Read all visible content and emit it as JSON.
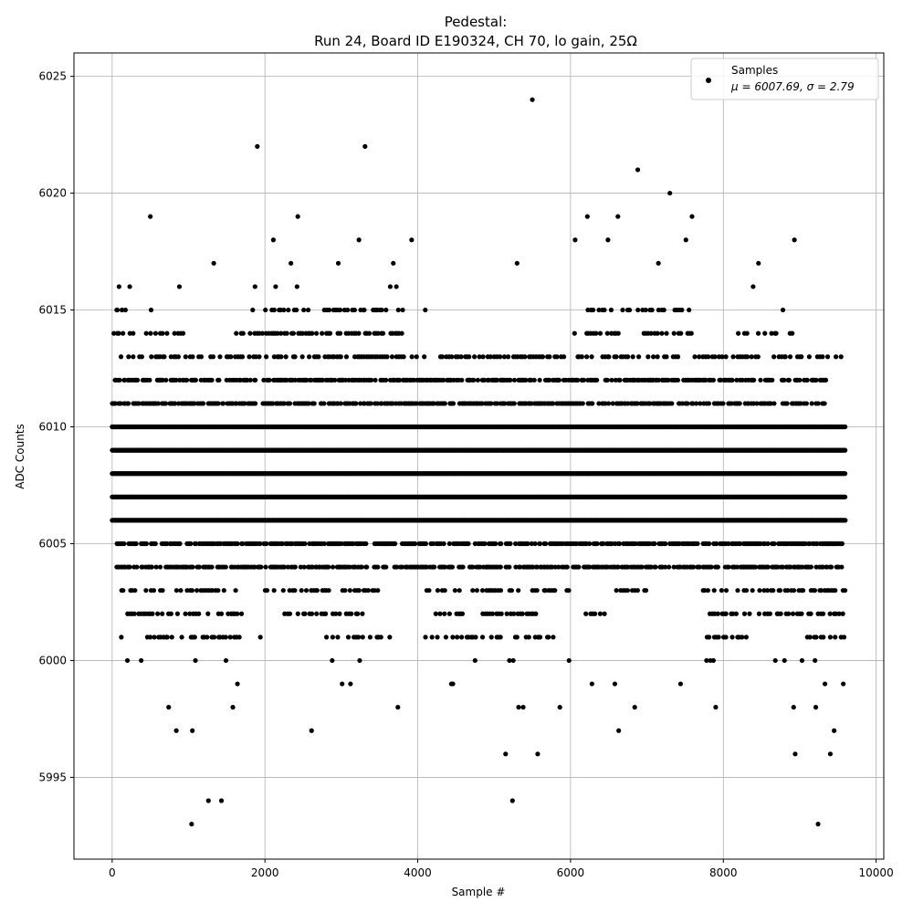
{
  "chart_data": {
    "type": "scatter",
    "title_line1": "Pedestal:",
    "title_line2": "Run 24, Board ID E190324, CH 70, lo gain, 25Ω",
    "xlabel": "Sample #",
    "ylabel": "ADC Counts",
    "xlim": [
      -500,
      10100
    ],
    "ylim": [
      5991.5,
      6026.0
    ],
    "xticks": [
      0,
      2000,
      4000,
      6000,
      8000,
      10000
    ],
    "yticks": [
      5995,
      6000,
      6005,
      6010,
      6015,
      6020,
      6025
    ],
    "grid": true,
    "legend_position": "top-right",
    "legend": {
      "series_name": "Samples",
      "stats_line": "μ = 6007.69, σ = 2.79"
    },
    "marker_color": "#000000",
    "total_samples": 9600,
    "bands": [
      {
        "y": 6004,
        "x_ranges": [
          [
            60,
            9600
          ]
        ]
      },
      {
        "y": 6005,
        "x_ranges": [
          [
            60,
            9600
          ]
        ]
      },
      {
        "y": 6006,
        "x_ranges": [
          [
            0,
            9600
          ]
        ]
      },
      {
        "y": 6007,
        "x_ranges": [
          [
            0,
            9600
          ]
        ]
      },
      {
        "y": 6008,
        "x_ranges": [
          [
            0,
            9600
          ]
        ]
      },
      {
        "y": 6009,
        "x_ranges": [
          [
            0,
            9600
          ]
        ]
      },
      {
        "y": 6010,
        "x_ranges": [
          [
            0,
            9600
          ]
        ]
      },
      {
        "y": 6011,
        "x_ranges": [
          [
            0,
            9350
          ]
        ]
      },
      {
        "y": 6012,
        "x_ranges": [
          [
            0,
            9350
          ]
        ]
      },
      {
        "y": 6013,
        "x_ranges": [
          [
            60,
            9550
          ]
        ]
      },
      {
        "y": 6003,
        "x_ranges": [
          [
            120,
            1650
          ],
          [
            2000,
            3500
          ],
          [
            4000,
            6000
          ],
          [
            6600,
            7000
          ],
          [
            7700,
            9600
          ]
        ]
      },
      {
        "y": 6014,
        "x_ranges": [
          [
            0,
            1000
          ],
          [
            1600,
            3800
          ],
          [
            6000,
            7600
          ],
          [
            8100,
            8950
          ]
        ]
      },
      {
        "y": 6002,
        "x_ranges": [
          [
            200,
            1700
          ],
          [
            2200,
            3300
          ],
          [
            4200,
            5600
          ],
          [
            6200,
            6500
          ],
          [
            7800,
            9600
          ]
        ]
      },
      {
        "y": 6015,
        "x_ranges": [
          [
            60,
            200
          ],
          [
            2000,
            4100
          ],
          [
            6200,
            7600
          ]
        ]
      },
      {
        "y": 6001,
        "x_ranges": [
          [
            400,
            1700
          ],
          [
            2800,
            3700
          ],
          [
            4100,
            5800
          ],
          [
            7700,
            8300
          ],
          [
            9100,
            9600
          ]
        ]
      }
    ],
    "points": [
      {
        "x": 60,
        "y": 6015
      },
      {
        "x": 90,
        "y": 6016
      },
      {
        "x": 120,
        "y": 6001
      },
      {
        "x": 200,
        "y": 6000
      },
      {
        "x": 230,
        "y": 6016
      },
      {
        "x": 380,
        "y": 6000
      },
      {
        "x": 500,
        "y": 6019
      },
      {
        "x": 510,
        "y": 6015
      },
      {
        "x": 740,
        "y": 5998
      },
      {
        "x": 840,
        "y": 5997
      },
      {
        "x": 880,
        "y": 6016
      },
      {
        "x": 1040,
        "y": 5993
      },
      {
        "x": 1050,
        "y": 5997
      },
      {
        "x": 1090,
        "y": 6000
      },
      {
        "x": 1260,
        "y": 5994
      },
      {
        "x": 1330,
        "y": 6017
      },
      {
        "x": 1430,
        "y": 5994
      },
      {
        "x": 1490,
        "y": 6000
      },
      {
        "x": 1580,
        "y": 5998
      },
      {
        "x": 1640,
        "y": 5999
      },
      {
        "x": 1840,
        "y": 6015
      },
      {
        "x": 1870,
        "y": 6016
      },
      {
        "x": 1900,
        "y": 6022
      },
      {
        "x": 1940,
        "y": 6001
      },
      {
        "x": 2110,
        "y": 6018
      },
      {
        "x": 2140,
        "y": 6016
      },
      {
        "x": 2340,
        "y": 6017
      },
      {
        "x": 2420,
        "y": 6016
      },
      {
        "x": 2430,
        "y": 6019
      },
      {
        "x": 2610,
        "y": 5997
      },
      {
        "x": 2880,
        "y": 6000
      },
      {
        "x": 2960,
        "y": 6017
      },
      {
        "x": 3010,
        "y": 5999
      },
      {
        "x": 3120,
        "y": 5999
      },
      {
        "x": 3230,
        "y": 6018
      },
      {
        "x": 3240,
        "y": 6000
      },
      {
        "x": 3310,
        "y": 6022
      },
      {
        "x": 3300,
        "y": 6015
      },
      {
        "x": 3460,
        "y": 6015
      },
      {
        "x": 3640,
        "y": 6016
      },
      {
        "x": 3680,
        "y": 6017
      },
      {
        "x": 3720,
        "y": 6016
      },
      {
        "x": 3740,
        "y": 5998
      },
      {
        "x": 3920,
        "y": 6018
      },
      {
        "x": 4440,
        "y": 5999
      },
      {
        "x": 4460,
        "y": 5999
      },
      {
        "x": 4750,
        "y": 6000
      },
      {
        "x": 5150,
        "y": 5996
      },
      {
        "x": 5200,
        "y": 6000
      },
      {
        "x": 5240,
        "y": 5994
      },
      {
        "x": 5250,
        "y": 6000
      },
      {
        "x": 5300,
        "y": 6017
      },
      {
        "x": 5320,
        "y": 5998
      },
      {
        "x": 5380,
        "y": 5998
      },
      {
        "x": 5500,
        "y": 6024
      },
      {
        "x": 5570,
        "y": 5996
      },
      {
        "x": 5860,
        "y": 5998
      },
      {
        "x": 5980,
        "y": 6000
      },
      {
        "x": 6060,
        "y": 6018
      },
      {
        "x": 6220,
        "y": 6019
      },
      {
        "x": 6280,
        "y": 5999
      },
      {
        "x": 6490,
        "y": 6018
      },
      {
        "x": 6580,
        "y": 5999
      },
      {
        "x": 6620,
        "y": 6019
      },
      {
        "x": 6630,
        "y": 5997
      },
      {
        "x": 6840,
        "y": 5998
      },
      {
        "x": 6880,
        "y": 6021
      },
      {
        "x": 7150,
        "y": 6017
      },
      {
        "x": 7300,
        "y": 6020
      },
      {
        "x": 7440,
        "y": 5999
      },
      {
        "x": 7510,
        "y": 6018
      },
      {
        "x": 7590,
        "y": 6019
      },
      {
        "x": 7780,
        "y": 6000
      },
      {
        "x": 7830,
        "y": 6000
      },
      {
        "x": 7870,
        "y": 6000
      },
      {
        "x": 7900,
        "y": 5998
      },
      {
        "x": 8390,
        "y": 6016
      },
      {
        "x": 8460,
        "y": 6017
      },
      {
        "x": 8680,
        "y": 6000
      },
      {
        "x": 8780,
        "y": 6015
      },
      {
        "x": 8800,
        "y": 6000
      },
      {
        "x": 8920,
        "y": 5998
      },
      {
        "x": 8930,
        "y": 6018
      },
      {
        "x": 8940,
        "y": 5996
      },
      {
        "x": 9030,
        "y": 6000
      },
      {
        "x": 9200,
        "y": 6000
      },
      {
        "x": 9210,
        "y": 5998
      },
      {
        "x": 9240,
        "y": 5993
      },
      {
        "x": 9330,
        "y": 5999
      },
      {
        "x": 9400,
        "y": 5996
      },
      {
        "x": 9450,
        "y": 5997
      },
      {
        "x": 9570,
        "y": 5999
      }
    ]
  }
}
